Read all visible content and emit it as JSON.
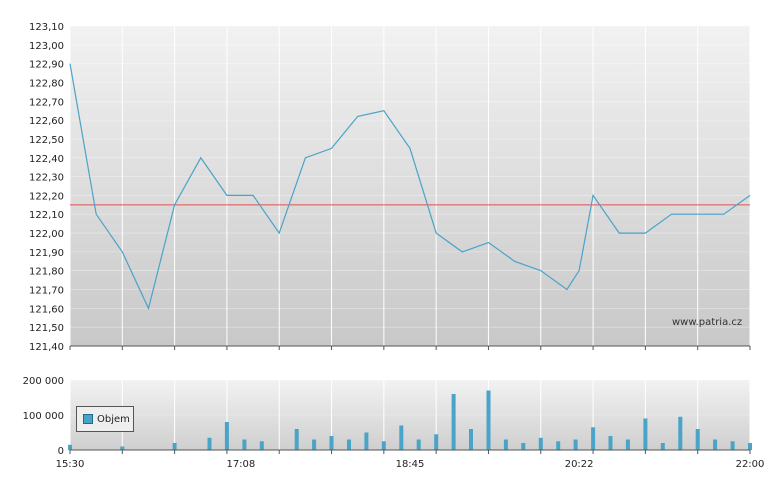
{
  "watermark": "www.patria.cz",
  "chart_data": [
    {
      "type": "line",
      "ylim": [
        121.4,
        123.1
      ],
      "yticks": [
        "123,10",
        "123,00",
        "122,90",
        "122,80",
        "122,70",
        "122,60",
        "122,50",
        "122,40",
        "122,30",
        "122,20",
        "122,10",
        "122,00",
        "121,90",
        "121,80",
        "121,70",
        "121,60",
        "121,50",
        "121,40"
      ],
      "reference_line": 122.15,
      "colors": {
        "line": "#4aa3c8",
        "reference": "#e05050"
      },
      "series": [
        {
          "x": [
            "15:30",
            "15:45",
            "16:00",
            "16:15",
            "16:30",
            "16:45",
            "17:00",
            "17:08",
            "17:15",
            "17:30",
            "17:45",
            "18:00",
            "18:15",
            "18:30",
            "18:45",
            "19:00",
            "19:15",
            "19:30",
            "19:45",
            "20:00",
            "20:15",
            "20:22",
            "20:30",
            "20:45",
            "21:00",
            "21:15",
            "21:30",
            "21:45",
            "22:00"
          ],
          "values": [
            122.9,
            122.1,
            121.9,
            121.6,
            122.15,
            122.4,
            122.2,
            122.2,
            122.2,
            122.0,
            122.4,
            122.45,
            122.62,
            122.65,
            122.45,
            122.0,
            121.9,
            121.95,
            121.85,
            121.8,
            121.7,
            121.8,
            122.2,
            122.0,
            122.0,
            122.1,
            122.1,
            122.1,
            122.2
          ]
        }
      ]
    },
    {
      "type": "bar",
      "ylim": [
        0,
        200000
      ],
      "yticks": [
        "200 000",
        "100 000",
        "0"
      ],
      "xticks": [
        "15:30",
        "17:08",
        "18:45",
        "20:22",
        "22:00"
      ],
      "colors": {
        "bar": "#4aa3c8"
      },
      "series": [
        {
          "name": "Objem",
          "x": [
            "15:30",
            "16:00",
            "16:30",
            "16:50",
            "17:00",
            "17:10",
            "17:20",
            "17:40",
            "17:50",
            "18:00",
            "18:10",
            "18:20",
            "18:30",
            "18:40",
            "18:50",
            "19:00",
            "19:10",
            "19:20",
            "19:30",
            "19:40",
            "19:50",
            "20:00",
            "20:10",
            "20:20",
            "20:30",
            "20:40",
            "20:50",
            "21:00",
            "21:10",
            "21:20",
            "21:30",
            "21:40",
            "21:50",
            "22:00"
          ],
          "values": [
            15000,
            10000,
            20000,
            35000,
            80000,
            30000,
            25000,
            60000,
            30000,
            40000,
            30000,
            50000,
            25000,
            70000,
            30000,
            45000,
            160000,
            60000,
            170000,
            30000,
            20000,
            35000,
            25000,
            30000,
            65000,
            40000,
            30000,
            90000,
            20000,
            95000,
            60000,
            30000,
            25000,
            20000
          ]
        }
      ]
    }
  ]
}
